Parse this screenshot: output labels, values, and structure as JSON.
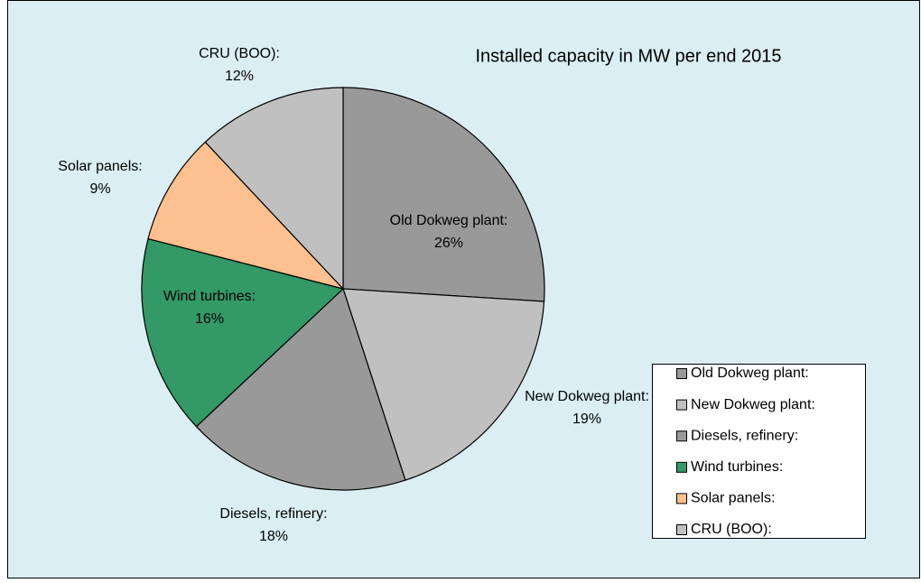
{
  "chart_data": {
    "type": "pie",
    "title": "Installed capacity in MW per end 2015",
    "categories": [
      "Old Dokweg plant:",
      "New  Dokweg plant:",
      "Diesels, refinery:",
      "Wind turbines:",
      "Solar panels:",
      "CRU  (BOO):"
    ],
    "values": [
      26,
      19,
      18,
      16,
      9,
      12
    ],
    "value_labels": [
      "26%",
      "19%",
      "18%",
      "16%",
      "9%",
      "12%"
    ],
    "colors": [
      "#999999",
      "#c0c0c0",
      "#999999",
      "#339966",
      "#ffc08f",
      "#c0c0c0"
    ],
    "legend": "right"
  }
}
